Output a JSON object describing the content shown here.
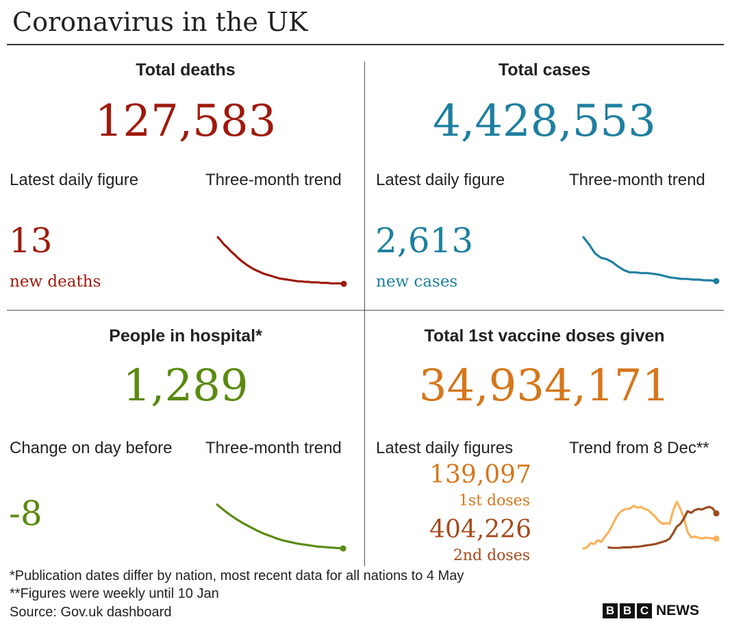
{
  "title": "Coronavirus in the UK",
  "colors": {
    "deaths": "#9e1a0c",
    "cases": "#1e7fa0",
    "hospital": "#5a8a10",
    "vaccine": "#d5771c",
    "dose1_line": "#fbb25c",
    "dose2_line": "#9b4a1e",
    "dose2_text": "#a5491c"
  },
  "panels": {
    "deaths": {
      "heading": "Total deaths",
      "total": "127,583",
      "daily_label": "Latest daily figure",
      "trend_label": "Three-month trend",
      "daily_value": "13",
      "daily_sub": "new deaths"
    },
    "cases": {
      "heading": "Total cases",
      "total": "4,428,553",
      "daily_label": "Latest daily figure",
      "trend_label": "Three-month trend",
      "daily_value": "2,613",
      "daily_sub": "new cases"
    },
    "hospital": {
      "heading": "People in hospital*",
      "total": "1,289",
      "daily_label": "Change on day before",
      "trend_label": "Three-month trend",
      "daily_value": "-8"
    },
    "vaccine": {
      "heading": "Total 1st vaccine doses given",
      "total": "34,934,171",
      "daily_label": "Latest daily figures",
      "trend_label": "Trend from 8 Dec**",
      "dose1_value": "139,097",
      "dose1_label": "1st doses",
      "dose2_value": "404,226",
      "dose2_label": "2nd doses"
    }
  },
  "footnotes": {
    "note1": "*Publication dates differ by nation, most recent data for all nations to 4 May",
    "note2": "**Figures were weekly until 10 Jan",
    "source": "Source: Gov.uk dashboard"
  },
  "logo": {
    "letters": [
      "B",
      "B",
      "C"
    ],
    "news": "NEWS"
  },
  "chart_data": [
    {
      "type": "line",
      "series": [
        {
          "values": [
            100,
            93,
            85,
            79,
            72,
            66,
            60,
            54,
            49,
            44,
            40,
            36,
            33,
            30,
            27,
            25,
            23,
            21,
            19,
            17,
            16,
            15,
            14,
            13,
            12,
            11,
            11,
            10,
            10,
            9,
            9,
            9,
            8,
            8,
            8,
            7,
            7,
            7,
            7,
            6
          ]
        }
      ],
      "legend": "none"
    },
    {
      "type": "line",
      "series": [
        {
          "values": [
            100,
            90,
            78,
            72,
            70,
            66,
            60,
            55,
            52,
            52,
            51,
            51,
            50,
            49,
            47,
            45,
            44,
            43,
            43,
            42,
            42,
            41,
            41,
            40
          ]
        }
      ],
      "legend": "none"
    },
    {
      "type": "line",
      "series": [
        {
          "values": [
            100,
            89,
            79,
            70,
            62,
            55,
            48,
            42,
            37,
            32,
            28,
            25,
            22,
            20,
            18,
            16,
            15,
            14,
            13,
            12
          ]
        }
      ],
      "legend": "none"
    },
    {
      "type": "line",
      "series": [
        {
          "values": [
            0,
            2,
            10,
            8,
            15,
            12,
            22,
            30,
            42,
            55,
            65,
            70,
            72,
            73,
            78,
            74,
            76,
            72,
            70,
            64,
            58,
            50,
            45,
            46,
            45,
            70,
            85,
            72,
            55,
            30,
            20,
            22,
            20,
            18,
            20,
            19,
            18,
            18
          ]
        },
        {
          "values": [
            null,
            null,
            null,
            null,
            null,
            null,
            null,
            2,
            1,
            1,
            1,
            2,
            2,
            2,
            3,
            3,
            4,
            5,
            6,
            7,
            8,
            10,
            12,
            14,
            18,
            28,
            40,
            45,
            55,
            68,
            65,
            70,
            72,
            71,
            74,
            76,
            73,
            64
          ]
        }
      ],
      "legend": "none"
    }
  ]
}
